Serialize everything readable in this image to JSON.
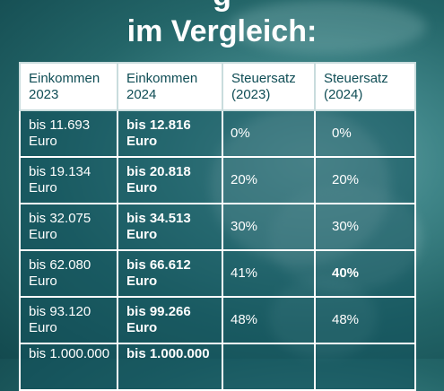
{
  "heading": {
    "top_line_partial": "g",
    "title": "im Vergleich:"
  },
  "table": {
    "headers": [
      [
        "Einkommen",
        "2023"
      ],
      [
        "Einkommen",
        "2024"
      ],
      [
        "Steuersatz",
        "(2023)"
      ],
      [
        "Steuersatz",
        "(2024)"
      ]
    ],
    "rows": [
      {
        "income_2023": [
          "bis 11.693",
          "Euro"
        ],
        "income_2024": [
          "bis 12.816",
          "Euro"
        ],
        "rate_2023": "0%",
        "rate_2024": "0%"
      },
      {
        "income_2023": [
          "bis 19.134",
          "Euro"
        ],
        "income_2024": [
          "bis 20.818",
          "Euro"
        ],
        "rate_2023": "20%",
        "rate_2024": "20%"
      },
      {
        "income_2023": [
          "bis 32.075",
          "Euro"
        ],
        "income_2024": [
          "bis 34.513",
          "Euro"
        ],
        "rate_2023": "30%",
        "rate_2024": "30%"
      },
      {
        "income_2023": [
          "bis 62.080",
          "Euro"
        ],
        "income_2024": [
          "bis 66.612",
          "Euro"
        ],
        "rate_2023": "41%",
        "rate_2024": "40%"
      },
      {
        "income_2023": [
          "bis 93.120",
          "Euro"
        ],
        "income_2024": [
          "bis 99.266",
          "Euro"
        ],
        "rate_2023": "48%",
        "rate_2024": "48%"
      },
      {
        "income_2023": [
          "bis 1.000.000",
          ""
        ],
        "income_2024": [
          "bis 1.000.000",
          ""
        ],
        "rate_2023": "",
        "rate_2024": ""
      }
    ]
  },
  "colors": {
    "background": "#236568",
    "header_text": "#0f4d55",
    "text": "#ffffff"
  }
}
